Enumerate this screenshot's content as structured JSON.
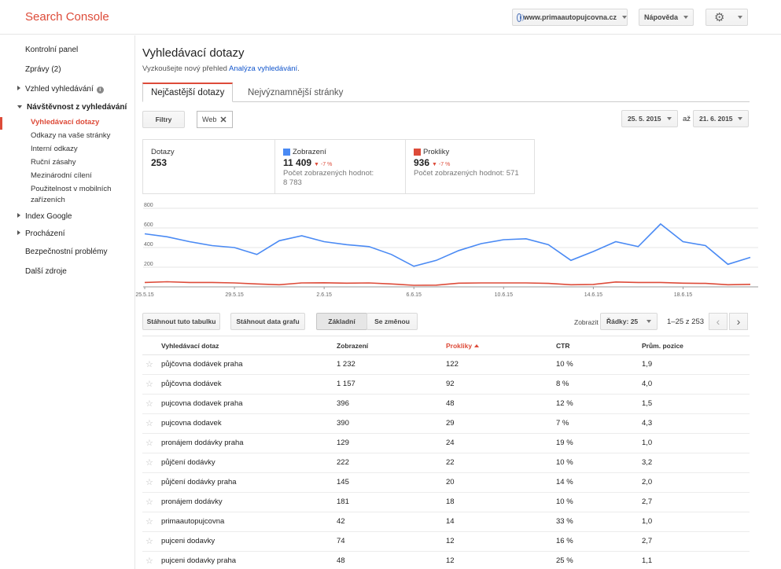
{
  "app": {
    "title": "Search Console"
  },
  "header": {
    "site": "www.primaautopujcovna.cz",
    "help": "Nápověda"
  },
  "sidebar": {
    "items": [
      {
        "label": "Kontrolní panel"
      },
      {
        "label": "Zprávy (2)"
      },
      {
        "label": "Vzhled vyhledávání"
      },
      {
        "label": "Návštěvnost z vyhledávání"
      },
      {
        "label": "Index Google"
      },
      {
        "label": "Procházení"
      },
      {
        "label": "Bezpečnostní problémy"
      },
      {
        "label": "Další zdroje"
      }
    ],
    "subitems": [
      {
        "label": "Vyhledávací dotazy"
      },
      {
        "label": "Odkazy na vaše stránky"
      },
      {
        "label": "Interní odkazy"
      },
      {
        "label": "Ruční zásahy"
      },
      {
        "label": "Mezinárodní cílení"
      },
      {
        "label": "Použitelnost v mobilních"
      },
      {
        "label": "zařízeních"
      }
    ]
  },
  "main": {
    "title": "Vyhledávací dotazy",
    "promo_text": "Vyzkoušejte nový přehled ",
    "promo_link": "Analýza vyhledávání",
    "promo_end": ".",
    "tabs": [
      {
        "label": "Nejčastější dotazy"
      },
      {
        "label": "Nejvýznamnější stránky"
      }
    ],
    "filters_button": "Filtry",
    "filter_chip": "Web",
    "date_from": "25. 5. 2015",
    "date_sep": "až",
    "date_to": "21. 6. 2015"
  },
  "summary": {
    "queries": {
      "label": "Dotazy",
      "value": "253"
    },
    "impressions": {
      "label": "Zobrazení",
      "value": "11 409",
      "delta": "-7 %",
      "sub": "Počet zobrazených hodnot:",
      "sub_value": "8 783",
      "color": "#4a8af4"
    },
    "clicks": {
      "label": "Prokliky",
      "value": "936",
      "delta": "-7 %",
      "sub": "Počet zobrazených hodnot: 571",
      "color": "#dd4b39"
    }
  },
  "chart_data": {
    "type": "line",
    "x": [
      "25.5.15",
      "26.5.15",
      "27.5.15",
      "28.5.15",
      "29.5.15",
      "30.5.15",
      "31.5.15",
      "1.6.15",
      "2.6.15",
      "3.6.15",
      "4.6.15",
      "5.6.15",
      "6.6.15",
      "7.6.15",
      "8.6.15",
      "9.6.15",
      "10.6.15",
      "11.6.15",
      "12.6.15",
      "13.6.15",
      "14.6.15",
      "15.6.15",
      "16.6.15",
      "17.6.15",
      "18.6.15",
      "19.6.15",
      "20.6.15",
      "21.6.15"
    ],
    "tick_labels": [
      "25.5.15",
      "29.5.15",
      "2.6.15",
      "6.6.15",
      "10.6.15",
      "14.6.15",
      "18.6.15"
    ],
    "series": [
      {
        "name": "Zobrazení",
        "color": "#4a8af4",
        "values": [
          540,
          510,
          460,
          420,
          400,
          330,
          470,
          520,
          460,
          430,
          410,
          330,
          210,
          270,
          370,
          440,
          480,
          490,
          430,
          270,
          360,
          460,
          410,
          640,
          460,
          420,
          230,
          300
        ]
      },
      {
        "name": "Prokliky",
        "color": "#dd4b39",
        "values": [
          45,
          52,
          45,
          45,
          40,
          30,
          22,
          40,
          42,
          38,
          40,
          30,
          16,
          18,
          38,
          40,
          40,
          40,
          35,
          22,
          25,
          50,
          45,
          45,
          38,
          35,
          22,
          26
        ]
      }
    ],
    "yticks": [
      "800",
      "600",
      "400",
      "200"
    ],
    "ylim": [
      0,
      800
    ],
    "grid": true
  },
  "toolbar": {
    "download_table": "Stáhnout tuto tabulku",
    "download_chart": "Stáhnout data grafu",
    "basic": "Základní",
    "with_change": "Se změnou",
    "show": "Zobrazit",
    "rows": "Řádky: 25",
    "range": "1–25 z 253"
  },
  "table": {
    "headers": [
      "Vyhledávací dotaz",
      "Zobrazení",
      "Prokliky",
      "CTR",
      "Prům. pozice"
    ],
    "rows": [
      [
        "půjčovna dodávek praha",
        "1 232",
        "122",
        "10 %",
        "1,9"
      ],
      [
        "půjčovna dodávek",
        "1 157",
        "92",
        "8 %",
        "4,0"
      ],
      [
        "pujcovna dodavek praha",
        "396",
        "48",
        "12 %",
        "1,5"
      ],
      [
        "pujcovna dodavek",
        "390",
        "29",
        "7 %",
        "4,3"
      ],
      [
        "pronájem dodávky praha",
        "129",
        "24",
        "19 %",
        "1,0"
      ],
      [
        "půjčení dodávky",
        "222",
        "22",
        "10 %",
        "3,2"
      ],
      [
        "půjčení dodávky praha",
        "145",
        "20",
        "14 %",
        "2,0"
      ],
      [
        "pronájem dodávky",
        "181",
        "18",
        "10 %",
        "2,7"
      ],
      [
        "primaautopujcovna",
        "42",
        "14",
        "33 %",
        "1,0"
      ],
      [
        "pujceni dodavky",
        "74",
        "12",
        "16 %",
        "2,7"
      ],
      [
        "pujceni dodavky praha",
        "48",
        "12",
        "25 %",
        "1,1"
      ]
    ]
  }
}
